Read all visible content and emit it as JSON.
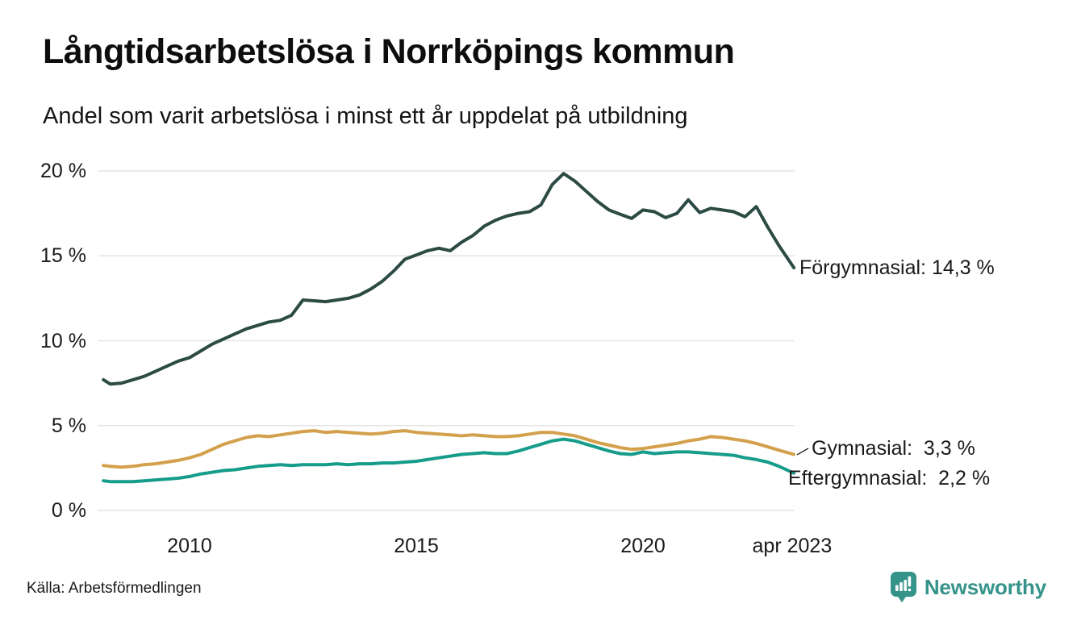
{
  "header": {
    "title": "Långtidsarbetslösa i Norrköpings kommun",
    "subtitle": "Andel som varit arbetslösa i minst ett år uppdelat på utbildning"
  },
  "footer": {
    "source": "Källa: Arbetsförmedlingen",
    "brand": "Newsworthy",
    "brand_color": "#35938a"
  },
  "chart_data": {
    "type": "line",
    "title": "Långtidsarbetslösa i Norrköpings kommun",
    "subtitle": "Andel som varit arbetslösa i minst ett år uppdelat på utbildning",
    "xlabel": "",
    "ylabel": "",
    "x_unit": "decimal_year",
    "xlim": [
      2008.1,
      2023.33
    ],
    "ylim": [
      0,
      20
    ],
    "grid": "horizontal",
    "grid_color": "#e4e4e4",
    "legend_position": "right-annotations",
    "y_ticks": [
      {
        "value": 0,
        "label": "0 %"
      },
      {
        "value": 5,
        "label": "5 %"
      },
      {
        "value": 10,
        "label": "10 %"
      },
      {
        "value": 15,
        "label": "15 %"
      },
      {
        "value": 20,
        "label": "20 %"
      }
    ],
    "x_ticks": [
      {
        "year": 2010,
        "label": "2010"
      },
      {
        "year": 2015,
        "label": "2015"
      },
      {
        "year": 2020,
        "label": "2020"
      },
      {
        "year": 2023.29,
        "label": "apr 2023"
      }
    ],
    "x": [
      2008.1,
      2008.25,
      2008.5,
      2008.75,
      2009,
      2009.25,
      2009.5,
      2009.75,
      2010,
      2010.25,
      2010.5,
      2010.75,
      2011,
      2011.25,
      2011.5,
      2011.75,
      2012,
      2012.25,
      2012.5,
      2012.75,
      2013,
      2013.25,
      2013.5,
      2013.75,
      2014,
      2014.25,
      2014.5,
      2014.75,
      2015,
      2015.25,
      2015.5,
      2015.75,
      2016,
      2016.25,
      2016.5,
      2016.75,
      2017,
      2017.25,
      2017.5,
      2017.75,
      2018,
      2018.25,
      2018.5,
      2018.75,
      2019,
      2019.25,
      2019.5,
      2019.75,
      2020,
      2020.25,
      2020.5,
      2020.75,
      2021,
      2021.25,
      2021.5,
      2021.75,
      2022,
      2022.25,
      2022.5,
      2022.75,
      2023,
      2023.33
    ],
    "series": [
      {
        "name": "Förgymnasial",
        "slug": "forgymnasial",
        "color": "#2c4b44",
        "last_value": 14.3,
        "annotation": "Förgymnasial: 14,3 %",
        "values": [
          7.7,
          7.45,
          7.5,
          7.7,
          7.9,
          8.2,
          8.5,
          8.8,
          9.0,
          9.4,
          9.8,
          10.1,
          10.4,
          10.7,
          10.9,
          11.1,
          11.2,
          11.5,
          12.4,
          12.35,
          12.3,
          12.4,
          12.5,
          12.7,
          13.05,
          13.5,
          14.1,
          14.8,
          15.05,
          15.3,
          15.45,
          15.3,
          15.8,
          16.2,
          16.75,
          17.1,
          17.35,
          17.5,
          17.6,
          18.0,
          19.2,
          19.85,
          19.4,
          18.8,
          18.2,
          17.7,
          17.45,
          17.2,
          17.7,
          17.6,
          17.25,
          17.5,
          18.3,
          17.55,
          17.8,
          17.7,
          17.6,
          17.3,
          17.9,
          16.7,
          15.6,
          14.3
        ]
      },
      {
        "name": "Gymnasial",
        "slug": "gymnasial",
        "color": "#d3a04c",
        "last_value": 3.3,
        "annotation": "Gymnasial:  3,3 %",
        "values": [
          2.65,
          2.6,
          2.55,
          2.6,
          2.7,
          2.75,
          2.85,
          2.95,
          3.1,
          3.3,
          3.6,
          3.9,
          4.1,
          4.3,
          4.4,
          4.35,
          4.45,
          4.55,
          4.65,
          4.7,
          4.6,
          4.65,
          4.6,
          4.55,
          4.5,
          4.55,
          4.65,
          4.7,
          4.6,
          4.55,
          4.5,
          4.45,
          4.4,
          4.45,
          4.4,
          4.35,
          4.35,
          4.4,
          4.5,
          4.6,
          4.6,
          4.5,
          4.4,
          4.2,
          4.0,
          3.85,
          3.7,
          3.6,
          3.65,
          3.75,
          3.85,
          3.95,
          4.1,
          4.2,
          4.35,
          4.3,
          4.2,
          4.1,
          3.95,
          3.75,
          3.55,
          3.3
        ]
      },
      {
        "name": "Eftergymnasial",
        "slug": "eftergymnasial",
        "color": "#169c8b",
        "last_value": 2.2,
        "annotation": "Eftergymnasial:  2,2 %",
        "values": [
          1.75,
          1.7,
          1.7,
          1.7,
          1.75,
          1.8,
          1.85,
          1.9,
          2.0,
          2.15,
          2.25,
          2.35,
          2.4,
          2.5,
          2.6,
          2.65,
          2.7,
          2.65,
          2.7,
          2.7,
          2.7,
          2.75,
          2.7,
          2.75,
          2.75,
          2.8,
          2.8,
          2.85,
          2.9,
          3.0,
          3.1,
          3.2,
          3.3,
          3.35,
          3.4,
          3.35,
          3.35,
          3.5,
          3.7,
          3.9,
          4.1,
          4.2,
          4.1,
          3.9,
          3.7,
          3.5,
          3.35,
          3.3,
          3.45,
          3.35,
          3.4,
          3.45,
          3.45,
          3.4,
          3.35,
          3.3,
          3.25,
          3.1,
          3.0,
          2.85,
          2.6,
          2.2
        ]
      }
    ]
  }
}
